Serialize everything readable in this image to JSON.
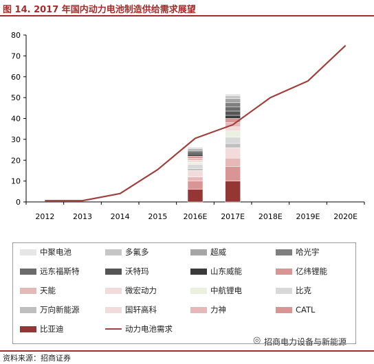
{
  "title": "图 14. 2017 年国内动力电池制造供给需求展望",
  "source": "资料来源：招商证券",
  "watermark": "招商电力设备与新能源",
  "chart_data": {
    "type": "bar",
    "categories": [
      "2012",
      "2013",
      "2014",
      "2015",
      "2016E",
      "2017E",
      "2018E",
      "2019E",
      "2020E"
    ],
    "ylim": [
      0,
      80
    ],
    "yticks": [
      0,
      10,
      20,
      30,
      40,
      50,
      60,
      70,
      80
    ],
    "grid": false,
    "legend_position": "bottom",
    "stack_order": [
      "比亚迪",
      "CATL",
      "力神",
      "国轩高科",
      "万向新能源",
      "比克",
      "中航锂电",
      "微宏动力",
      "天能",
      "亿纬锂能",
      "山东威能",
      "沃特玛",
      "远东福斯特",
      "哈光宇",
      "超威",
      "多氟多",
      "中聚电池"
    ],
    "series": [
      {
        "name": "中聚电池",
        "kind": "bar",
        "color": "#e6e6e6",
        "values": [
          0,
          0,
          0,
          0,
          0.3,
          0.8,
          0,
          0,
          0
        ]
      },
      {
        "name": "多氟多",
        "kind": "bar",
        "color": "#c6c6c6",
        "values": [
          0,
          0,
          0,
          0,
          0.5,
          1.5,
          0,
          0,
          0
        ]
      },
      {
        "name": "超威",
        "kind": "bar",
        "color": "#a6a6a6",
        "values": [
          0,
          0,
          0,
          0,
          0.5,
          2,
          0,
          0,
          0
        ]
      },
      {
        "name": "哈光宇",
        "kind": "bar",
        "color": "#7f7f7f",
        "values": [
          0,
          0,
          0,
          0,
          0.5,
          2,
          0,
          0,
          0
        ]
      },
      {
        "name": "远东福斯特",
        "kind": "bar",
        "color": "#6b6b6b",
        "values": [
          0,
          0,
          0,
          0,
          0.5,
          2,
          0,
          0,
          0
        ]
      },
      {
        "name": "沃特玛",
        "kind": "bar",
        "color": "#555555",
        "values": [
          0,
          0,
          0,
          0,
          1,
          2,
          0,
          0,
          0
        ]
      },
      {
        "name": "山东威能",
        "kind": "bar",
        "color": "#3a3a3a",
        "values": [
          0,
          0,
          0,
          0,
          1,
          1.5,
          0,
          0,
          0
        ]
      },
      {
        "name": "亿纬锂能",
        "kind": "bar",
        "color": "#d99594",
        "values": [
          0,
          0,
          0,
          0,
          1,
          2,
          0,
          0,
          0
        ]
      },
      {
        "name": "天能",
        "kind": "bar",
        "color": "#e6b9b8",
        "values": [
          0,
          0,
          0,
          0,
          1,
          2,
          0,
          0,
          0
        ]
      },
      {
        "name": "微宏动力",
        "kind": "bar",
        "color": "#f2dcdb",
        "values": [
          0,
          0,
          0,
          0,
          1,
          2,
          0,
          0,
          0
        ]
      },
      {
        "name": "中航锂电",
        "kind": "bar",
        "color": "#ebf1de",
        "values": [
          0,
          0,
          0,
          0,
          1,
          3,
          0,
          0,
          0
        ]
      },
      {
        "name": "比克",
        "kind": "bar",
        "color": "#d9d9d9",
        "values": [
          0,
          0,
          0,
          0,
          2,
          3,
          0,
          0,
          0
        ]
      },
      {
        "name": "万向新能源",
        "kind": "bar",
        "color": "#bfbfbf",
        "values": [
          0,
          0,
          0,
          0,
          1,
          2,
          0,
          0,
          0
        ]
      },
      {
        "name": "国轩高科",
        "kind": "bar",
        "color": "#f2dcdb",
        "values": [
          0,
          0,
          0,
          0,
          3,
          5,
          0,
          0,
          0
        ]
      },
      {
        "name": "力神",
        "kind": "bar",
        "color": "#e6b9b8",
        "values": [
          0,
          0,
          0,
          0,
          2,
          4,
          0,
          0,
          0
        ]
      },
      {
        "name": "CATL",
        "kind": "bar",
        "color": "#d99594",
        "values": [
          0,
          0,
          0,
          0,
          4,
          7,
          0,
          0,
          0
        ]
      },
      {
        "name": "比亚迪",
        "kind": "bar",
        "color": "#943634",
        "values": [
          0,
          0,
          0,
          0,
          6,
          10,
          0,
          0,
          0
        ]
      },
      {
        "name": "动力电池需求",
        "kind": "line",
        "color": "#a0403c",
        "values": [
          0.6,
          0.6,
          4,
          15.5,
          30.5,
          37,
          50,
          58,
          75
        ]
      }
    ]
  }
}
